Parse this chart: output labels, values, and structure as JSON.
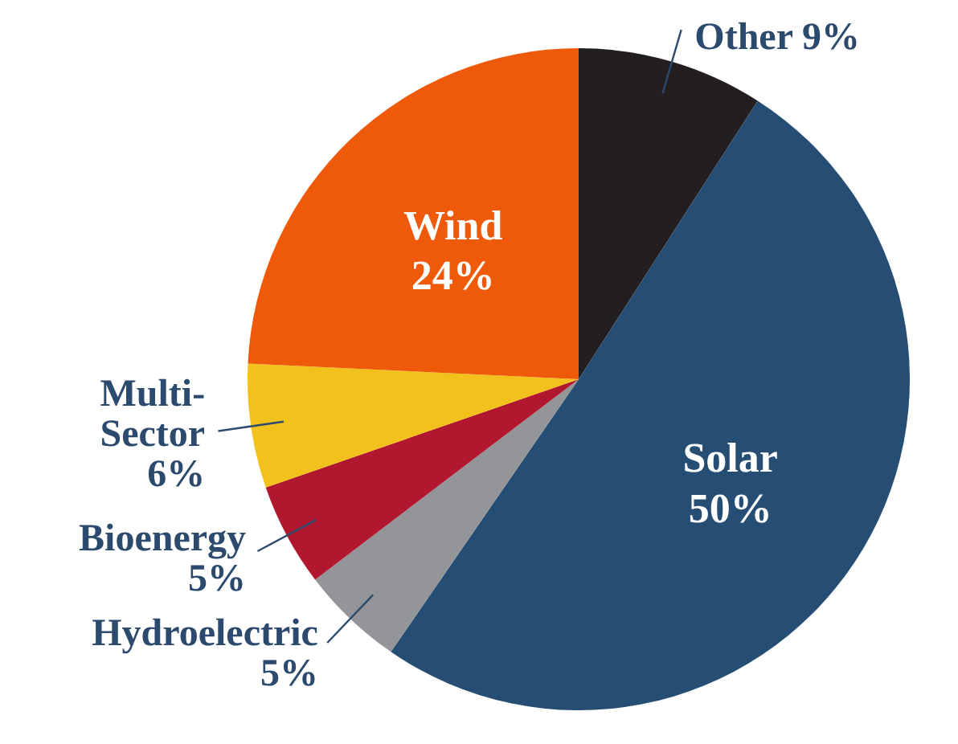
{
  "chart_data": {
    "type": "pie",
    "categories": [
      "Other",
      "Solar",
      "Hydroelectric",
      "Bioenergy",
      "Multi-Sector",
      "Wind"
    ],
    "values": [
      9,
      50,
      5,
      5,
      6,
      24
    ],
    "colors": [
      "#231f20",
      "#264d73",
      "#939598",
      "#b1182f",
      "#f2c11c",
      "#ee5a0a"
    ],
    "value_labels": [
      "9%",
      "50%",
      "5%",
      "5%",
      "6%",
      "24%"
    ]
  }
}
